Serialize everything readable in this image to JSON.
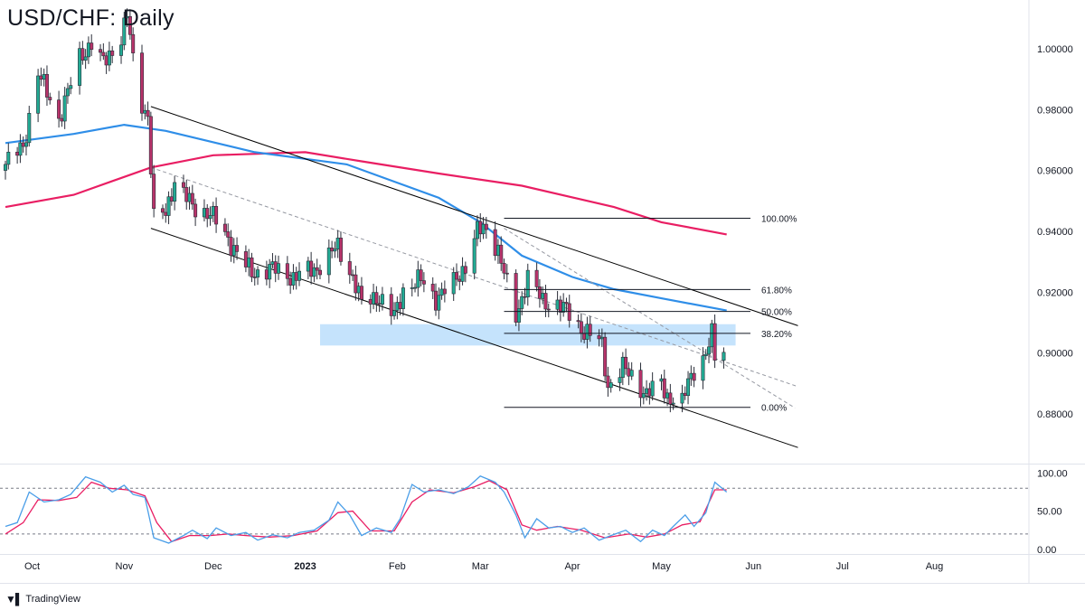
{
  "title": "USD/CHF: Daily",
  "brand": {
    "logo_icon": "tradingview-logo-icon",
    "name": "TradingView"
  },
  "colors": {
    "up": "#22ab94",
    "down": "#b8336a",
    "ma_fast": "#2f8ee8",
    "ma_slow": "#e91e63",
    "zone": "#bbdefb",
    "channel": "#000000",
    "stoch_k": "#4a9ee8",
    "stoch_d": "#e91e63"
  },
  "chart_data": [
    {
      "type": "candlestick",
      "title": "USD/CHF: Daily",
      "y_axis": {
        "side": "right",
        "range": [
          0.864,
          1.016
        ],
        "ticks": [
          1.0,
          0.98,
          0.96,
          0.94,
          0.92,
          0.9,
          0.88
        ],
        "tick_labels": [
          "1.00000",
          "0.98000",
          "0.96000",
          "0.94000",
          "0.92000",
          "0.90000",
          "0.88000"
        ]
      },
      "x_axis": {
        "range": [
          "2022-09-22",
          "2023-08-31"
        ],
        "ticks": [
          {
            "date": "2022-10-01",
            "label": "Oct"
          },
          {
            "date": "2022-11-01",
            "label": "Nov"
          },
          {
            "date": "2022-12-01",
            "label": "Dec"
          },
          {
            "date": "2023-01-01",
            "label": "2023"
          },
          {
            "date": "2023-02-01",
            "label": "Feb"
          },
          {
            "date": "2023-03-01",
            "label": "Mar"
          },
          {
            "date": "2023-04-01",
            "label": "Apr"
          },
          {
            "date": "2023-05-01",
            "label": "May"
          },
          {
            "date": "2023-06-01",
            "label": "Jun"
          },
          {
            "date": "2023-07-01",
            "label": "Jul"
          },
          {
            "date": "2023-08-01",
            "label": "Aug"
          }
        ]
      },
      "grid": false,
      "close_anchors": [
        [
          "2022-09-22",
          0.962
        ],
        [
          "2022-09-28",
          0.968
        ],
        [
          "2022-10-03",
          0.992
        ],
        [
          "2022-10-10",
          0.977
        ],
        [
          "2022-10-17",
          0.997
        ],
        [
          "2022-10-21",
          1.002
        ],
        [
          "2022-10-25",
          0.995
        ],
        [
          "2022-10-31",
          1.004
        ],
        [
          "2022-11-02",
          1.011
        ],
        [
          "2022-11-04",
          0.996
        ],
        [
          "2022-11-07",
          0.982
        ],
        [
          "2022-11-09",
          0.978
        ],
        [
          "2022-11-10",
          0.961
        ],
        [
          "2022-11-11",
          0.944
        ],
        [
          "2022-11-15",
          0.946
        ],
        [
          "2022-11-18",
          0.957
        ],
        [
          "2022-11-24",
          0.948
        ],
        [
          "2022-11-30",
          0.946
        ],
        [
          "2022-12-07",
          0.936
        ],
        [
          "2022-12-14",
          0.926
        ],
        [
          "2022-12-20",
          0.928
        ],
        [
          "2022-12-28",
          0.925
        ],
        [
          "2023-01-05",
          0.928
        ],
        [
          "2023-01-12",
          0.935
        ],
        [
          "2023-01-17",
          0.925
        ],
        [
          "2023-01-20",
          0.916
        ],
        [
          "2023-01-25",
          0.919
        ],
        [
          "2023-01-31",
          0.912
        ],
        [
          "2023-02-03",
          0.921
        ],
        [
          "2023-02-09",
          0.924
        ],
        [
          "2023-02-14",
          0.918
        ],
        [
          "2023-02-20",
          0.923
        ],
        [
          "2023-02-24",
          0.929
        ],
        [
          "2023-02-28",
          0.94
        ],
        [
          "2023-03-03",
          0.941
        ],
        [
          "2023-03-07",
          0.934
        ],
        [
          "2023-03-09",
          0.926
        ],
        [
          "2023-03-13",
          0.912
        ],
        [
          "2023-03-17",
          0.925
        ],
        [
          "2023-03-22",
          0.917
        ],
        [
          "2023-03-27",
          0.916
        ],
        [
          "2023-03-31",
          0.913
        ],
        [
          "2023-04-05",
          0.907
        ],
        [
          "2023-04-07",
          0.906
        ],
        [
          "2023-04-11",
          0.903
        ],
        [
          "2023-04-13",
          0.889
        ],
        [
          "2023-04-18",
          0.895
        ],
        [
          "2023-04-21",
          0.893
        ],
        [
          "2023-04-26",
          0.886
        ],
        [
          "2023-05-01",
          0.891
        ],
        [
          "2023-05-03",
          0.886
        ],
        [
          "2023-05-05",
          0.884
        ],
        [
          "2023-05-08",
          0.883
        ],
        [
          "2023-05-10",
          0.891
        ],
        [
          "2023-05-12",
          0.895
        ],
        [
          "2023-05-16",
          0.899
        ],
        [
          "2023-05-18",
          0.906
        ],
        [
          "2023-05-19",
          0.899
        ],
        [
          "2023-05-22",
          0.902
        ]
      ],
      "overlays": {
        "ma_fast": [
          [
            "2022-09-22",
            0.969
          ],
          [
            "2022-10-15",
            0.972
          ],
          [
            "2022-11-01",
            0.975
          ],
          [
            "2022-11-15",
            0.973
          ],
          [
            "2022-12-15",
            0.966
          ],
          [
            "2023-01-15",
            0.962
          ],
          [
            "2023-02-15",
            0.951
          ],
          [
            "2023-03-01",
            0.943
          ],
          [
            "2023-03-15",
            0.932
          ],
          [
            "2023-04-01",
            0.925
          ],
          [
            "2023-04-15",
            0.921
          ],
          [
            "2023-05-01",
            0.918
          ],
          [
            "2023-05-23",
            0.914
          ]
        ],
        "ma_slow": [
          [
            "2022-09-22",
            0.948
          ],
          [
            "2022-10-15",
            0.952
          ],
          [
            "2022-11-10",
            0.961
          ],
          [
            "2022-12-01",
            0.965
          ],
          [
            "2023-01-01",
            0.966
          ],
          [
            "2023-01-20",
            0.963
          ],
          [
            "2023-02-15",
            0.959
          ],
          [
            "2023-03-15",
            0.955
          ],
          [
            "2023-04-15",
            0.948
          ],
          [
            "2023-05-01",
            0.943
          ],
          [
            "2023-05-23",
            0.939
          ]
        ],
        "channel_upper": [
          [
            "2022-11-10",
            0.981
          ],
          [
            "2023-06-16",
            0.909
          ]
        ],
        "channel_lower": [
          [
            "2022-11-10",
            0.941
          ],
          [
            "2023-06-16",
            0.869
          ]
        ],
        "midline_dashed_1": [
          [
            "2022-11-10",
            0.961
          ],
          [
            "2023-06-16",
            0.889
          ]
        ],
        "midline_dashed_2": [
          [
            "2023-03-09",
            0.941
          ],
          [
            "2023-06-15",
            0.882
          ]
        ],
        "zone": {
          "from": "2023-01-06",
          "to": "2023-05-26",
          "y_low": 0.9025,
          "y_high": 0.9095
        },
        "fibonacci": {
          "from": "2023-03-09",
          "to": "2023-05-31",
          "levels": [
            {
              "value": 0.9443,
              "label": "100.00%"
            },
            {
              "value": 0.9209,
              "label": "61.80%"
            },
            {
              "value": 0.9137,
              "label": "50.00%"
            },
            {
              "value": 0.9065,
              "label": "38.20%"
            },
            {
              "value": 0.8822,
              "label": "0.00%"
            }
          ]
        }
      }
    },
    {
      "type": "line",
      "name": "stochastic",
      "y_axis": {
        "range": [
          -5,
          110
        ],
        "ticks": [
          100,
          50,
          0
        ],
        "tick_labels": [
          "100.00",
          "50.00",
          "0.00"
        ]
      },
      "levels": [
        80,
        20
      ],
      "series": [
        {
          "key": "k",
          "values": [
            [
              "2022-09-22",
              30
            ],
            [
              "2022-09-26",
              35
            ],
            [
              "2022-09-30",
              75
            ],
            [
              "2022-10-05",
              62
            ],
            [
              "2022-10-10",
              65
            ],
            [
              "2022-10-14",
              72
            ],
            [
              "2022-10-19",
              95
            ],
            [
              "2022-10-24",
              88
            ],
            [
              "2022-10-28",
              75
            ],
            [
              "2022-11-01",
              84
            ],
            [
              "2022-11-04",
              72
            ],
            [
              "2022-11-08",
              68
            ],
            [
              "2022-11-11",
              15
            ],
            [
              "2022-11-16",
              8
            ],
            [
              "2022-11-21",
              18
            ],
            [
              "2022-11-24",
              25
            ],
            [
              "2022-11-29",
              14
            ],
            [
              "2022-12-02",
              28
            ],
            [
              "2022-12-07",
              18
            ],
            [
              "2022-12-12",
              22
            ],
            [
              "2022-12-16",
              12
            ],
            [
              "2022-12-21",
              19
            ],
            [
              "2022-12-26",
              15
            ],
            [
              "2022-12-30",
              22
            ],
            [
              "2023-01-04",
              25
            ],
            [
              "2023-01-09",
              38
            ],
            [
              "2023-01-12",
              62
            ],
            [
              "2023-01-16",
              45
            ],
            [
              "2023-01-20",
              18
            ],
            [
              "2023-01-25",
              28
            ],
            [
              "2023-01-30",
              22
            ],
            [
              "2023-02-02",
              40
            ],
            [
              "2023-02-06",
              85
            ],
            [
              "2023-02-10",
              75
            ],
            [
              "2023-02-15",
              78
            ],
            [
              "2023-02-20",
              73
            ],
            [
              "2023-02-25",
              82
            ],
            [
              "2023-03-01",
              96
            ],
            [
              "2023-03-06",
              88
            ],
            [
              "2023-03-09",
              75
            ],
            [
              "2023-03-13",
              45
            ],
            [
              "2023-03-16",
              15
            ],
            [
              "2023-03-20",
              40
            ],
            [
              "2023-03-24",
              28
            ],
            [
              "2023-03-28",
              30
            ],
            [
              "2023-04-01",
              22
            ],
            [
              "2023-04-05",
              28
            ],
            [
              "2023-04-10",
              12
            ],
            [
              "2023-04-14",
              18
            ],
            [
              "2023-04-19",
              25
            ],
            [
              "2023-04-24",
              10
            ],
            [
              "2023-04-28",
              25
            ],
            [
              "2023-05-02",
              18
            ],
            [
              "2023-05-05",
              30
            ],
            [
              "2023-05-09",
              45
            ],
            [
              "2023-05-12",
              30
            ],
            [
              "2023-05-16",
              48
            ],
            [
              "2023-05-19",
              88
            ],
            [
              "2023-05-23",
              75
            ]
          ]
        },
        {
          "key": "d",
          "values": [
            [
              "2022-09-22",
              20
            ],
            [
              "2022-09-28",
              35
            ],
            [
              "2022-10-03",
              65
            ],
            [
              "2022-10-10",
              64
            ],
            [
              "2022-10-16",
              68
            ],
            [
              "2022-10-21",
              88
            ],
            [
              "2022-10-27",
              80
            ],
            [
              "2022-11-02",
              78
            ],
            [
              "2022-11-08",
              70
            ],
            [
              "2022-11-12",
              35
            ],
            [
              "2022-11-17",
              10
            ],
            [
              "2022-11-23",
              18
            ],
            [
              "2022-11-30",
              18
            ],
            [
              "2022-12-06",
              20
            ],
            [
              "2022-12-12",
              18
            ],
            [
              "2022-12-20",
              16
            ],
            [
              "2022-12-28",
              18
            ],
            [
              "2023-01-05",
              24
            ],
            [
              "2023-01-12",
              48
            ],
            [
              "2023-01-17",
              50
            ],
            [
              "2023-01-23",
              24
            ],
            [
              "2023-01-31",
              24
            ],
            [
              "2023-02-06",
              62
            ],
            [
              "2023-02-12",
              78
            ],
            [
              "2023-02-20",
              74
            ],
            [
              "2023-02-27",
              82
            ],
            [
              "2023-03-04",
              90
            ],
            [
              "2023-03-10",
              78
            ],
            [
              "2023-03-15",
              32
            ],
            [
              "2023-03-20",
              25
            ],
            [
              "2023-03-27",
              30
            ],
            [
              "2023-04-04",
              25
            ],
            [
              "2023-04-12",
              15
            ],
            [
              "2023-04-20",
              20
            ],
            [
              "2023-04-26",
              16
            ],
            [
              "2023-05-02",
              20
            ],
            [
              "2023-05-08",
              32
            ],
            [
              "2023-05-14",
              36
            ],
            [
              "2023-05-19",
              78
            ],
            [
              "2023-05-23",
              78
            ]
          ]
        }
      ]
    }
  ]
}
